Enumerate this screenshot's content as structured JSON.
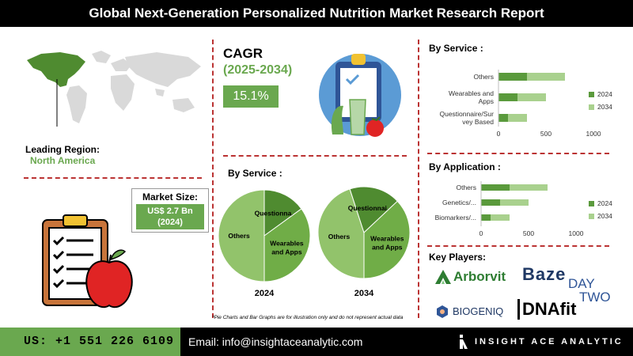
{
  "header": {
    "title": "Global Next-Generation Personalized Nutrition Market Research Report"
  },
  "region": {
    "label": "Leading Region:",
    "value": "North America"
  },
  "market_size": {
    "label": "Market Size:",
    "line1": "US$ 2.7 Bn",
    "line2": "(2024)"
  },
  "cagr": {
    "title": "CAGR",
    "period": "(2025-2034)",
    "value": "15.1%"
  },
  "pie_section": {
    "title": "By Service :"
  },
  "service_bar_title": "By Service :",
  "application_bar_title": "By Application :",
  "key_players": {
    "title": "Key Players:",
    "logos": [
      "Arborvit",
      "Baze",
      "DAY",
      "TWO",
      "BIOGENIQ",
      "DNAfit"
    ]
  },
  "note": "*Pie Charts and Bar Graphs are for illustration only and do not represent actual data",
  "footer": {
    "phone": "US:  +1 551 226 6109",
    "email": "Email: info@insightaceanalytic.com",
    "brand": "INSIGHT ACE ANALYTIC"
  },
  "colors": {
    "dark_green": "#5a9a3c",
    "light_green": "#a9d18e",
    "accent_green": "#6aa84f",
    "pie_dark": "#4f8b30",
    "pie_mid": "#70ad47",
    "pie_light": "#92c36b"
  },
  "chart_data": [
    {
      "type": "pie",
      "title": "2024",
      "labels": [
        "Others",
        "Questionnaire/Survey Based",
        "Wearables and Apps"
      ],
      "display_labels": [
        "Others",
        "Questionna...",
        "Wearables and Apps"
      ],
      "values": [
        50,
        15,
        35
      ]
    },
    {
      "type": "pie",
      "title": "2034",
      "labels": [
        "Others",
        "Questionnaire/Survey Based",
        "Wearables and Apps"
      ],
      "display_labels": [
        "Others",
        "Questionnai...",
        "Wearables and Apps"
      ],
      "values": [
        45,
        18,
        37
      ]
    },
    {
      "type": "bar",
      "orientation": "horizontal",
      "stacked": true,
      "title": "By Service :",
      "categories": [
        "Others",
        "Wearables and Apps",
        "Questionnaire/Survey Based"
      ],
      "category_lines": [
        [
          "Others"
        ],
        [
          "Wearables and",
          "Apps"
        ],
        [
          "Questionnaire/Sur",
          "vey Based"
        ]
      ],
      "series": [
        {
          "name": "2024",
          "values": [
            300,
            200,
            100
          ]
        },
        {
          "name": "2034",
          "values": [
            400,
            300,
            200
          ]
        }
      ],
      "xlim": [
        0,
        1000
      ],
      "ticks": [
        "0",
        "500",
        "1000"
      ],
      "legend": "right"
    },
    {
      "type": "bar",
      "orientation": "horizontal",
      "stacked": true,
      "title": "By Application :",
      "categories": [
        "Others",
        "Genetics/...",
        "Biomarkers/..."
      ],
      "series": [
        {
          "name": "2024",
          "values": [
            300,
            200,
            100
          ]
        },
        {
          "name": "2034",
          "values": [
            400,
            300,
            200
          ]
        }
      ],
      "xlim": [
        0,
        1000
      ],
      "ticks": [
        "0",
        "500",
        "1000"
      ],
      "legend": "right"
    }
  ]
}
